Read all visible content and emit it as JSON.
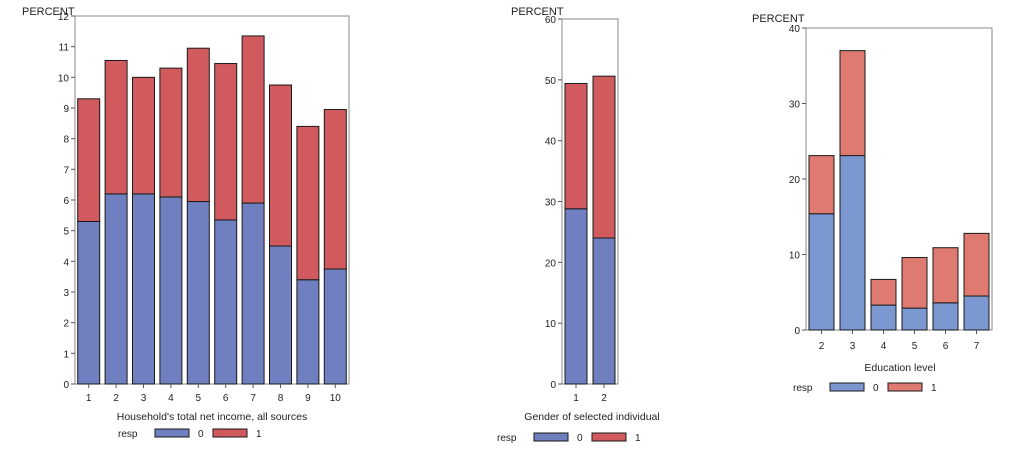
{
  "colors": {
    "stack0": "#6f7fbf",
    "stack1": "#d05a5e",
    "stack0_edu": "#7b98d0",
    "stack1_edu": "#de7a70",
    "frame": "#888888",
    "bar_edge": "#1a1a1a"
  },
  "chart_data": [
    {
      "type": "bar",
      "stacked": true,
      "title": "",
      "ylabel": "PERCENT",
      "xlabel": "Household's total net income, all sources",
      "ylim": [
        0,
        12
      ],
      "yticks": [
        0,
        1,
        2,
        3,
        4,
        5,
        6,
        7,
        8,
        9,
        10,
        11,
        12
      ],
      "categories": [
        "1",
        "2",
        "3",
        "4",
        "5",
        "6",
        "7",
        "8",
        "9",
        "10"
      ],
      "legend_title": "resp",
      "legend_position": "bottom",
      "series": [
        {
          "name": "0",
          "values": [
            5.3,
            6.2,
            6.2,
            6.1,
            5.95,
            5.35,
            5.9,
            4.5,
            3.4,
            3.75
          ]
        },
        {
          "name": "1",
          "values": [
            4.0,
            4.35,
            3.8,
            4.2,
            5.0,
            5.1,
            5.45,
            5.25,
            5.0,
            5.2
          ]
        }
      ]
    },
    {
      "type": "bar",
      "stacked": true,
      "title": "",
      "ylabel": "PERCENT",
      "xlabel": "Gender of selected individual",
      "ylim": [
        0,
        60
      ],
      "yticks": [
        0,
        10,
        20,
        30,
        40,
        50,
        60
      ],
      "categories": [
        "1",
        "2"
      ],
      "legend_title": "resp",
      "legend_position": "bottom",
      "series": [
        {
          "name": "0",
          "values": [
            28.8,
            24.0
          ]
        },
        {
          "name": "1",
          "values": [
            20.6,
            26.6
          ]
        }
      ]
    },
    {
      "type": "bar",
      "stacked": true,
      "title": "",
      "ylabel": "PERCENT",
      "xlabel": "Education level",
      "ylim": [
        0,
        40
      ],
      "yticks": [
        0,
        10,
        20,
        30,
        40
      ],
      "categories": [
        "2",
        "3",
        "4",
        "5",
        "6",
        "7"
      ],
      "legend_title": "resp",
      "legend_position": "bottom",
      "series": [
        {
          "name": "0",
          "values": [
            15.4,
            23.1,
            3.3,
            2.9,
            3.6,
            4.5
          ]
        },
        {
          "name": "1",
          "values": [
            7.7,
            13.9,
            3.4,
            6.7,
            7.3,
            8.3
          ]
        }
      ]
    }
  ]
}
